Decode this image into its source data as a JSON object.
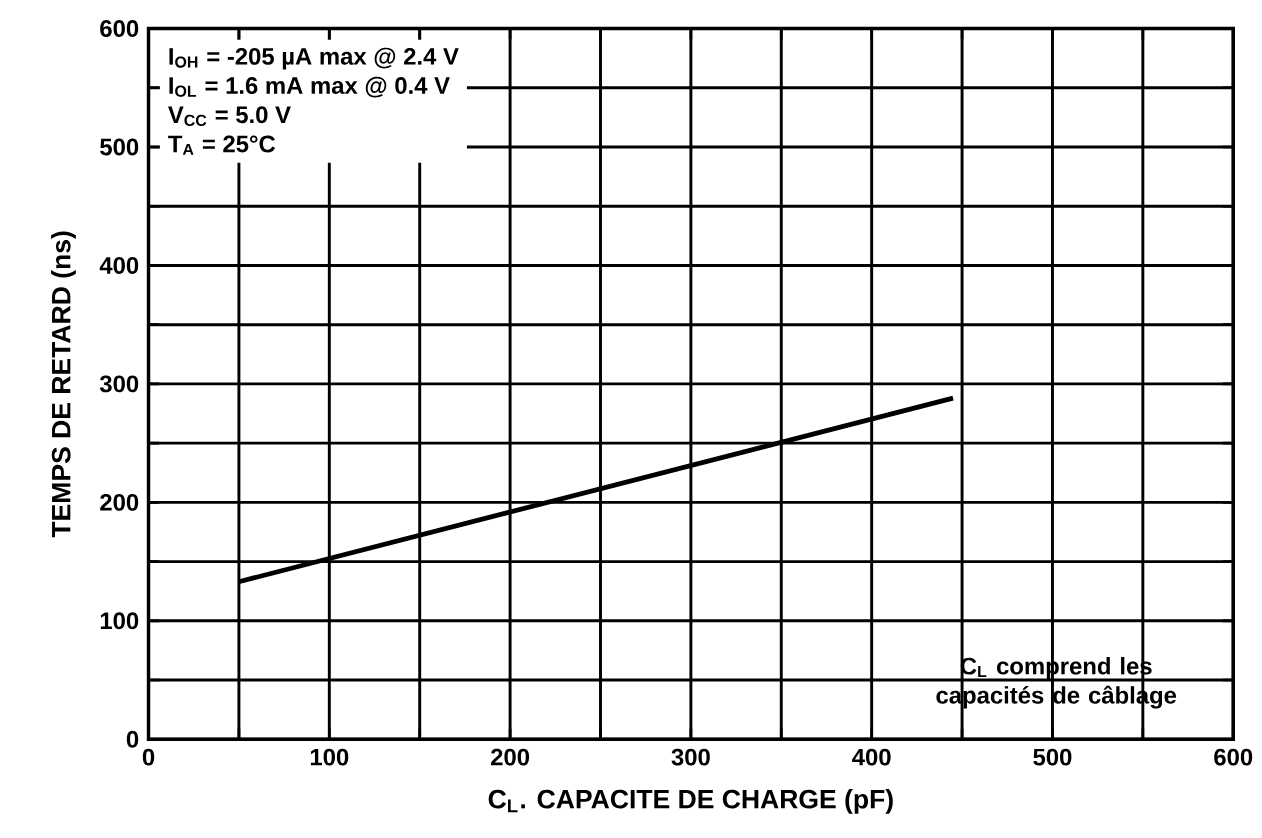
{
  "chart_data": {
    "type": "line",
    "xlabel": "C$_{L}$. CAPACITE DE CHARGE (pF)",
    "ylabel": "TEMPS DE RETARD (ns)",
    "x": [
      50,
      445
    ],
    "series": [
      {
        "color": "#000000",
        "values": [
          133,
          288
        ]
      }
    ],
    "xlim": [
      0,
      600
    ],
    "ylim": [
      0,
      600
    ],
    "xticks": [
      0,
      {
        "value": 50,
        "label": null
      },
      100,
      {
        "value": 150,
        "label": null
      },
      200,
      {
        "value": 250,
        "label": null
      },
      300,
      {
        "value": 350,
        "label": null
      },
      400,
      {
        "value": 450,
        "label": null
      },
      500,
      {
        "value": 550,
        "label": null
      },
      600
    ],
    "yticks": [
      0,
      {
        "value": 50,
        "label": null
      },
      100,
      {
        "value": 150,
        "label": null
      },
      200,
      {
        "value": 250,
        "label": null
      },
      300,
      {
        "value": 350,
        "label": null
      },
      400,
      {
        "value": 450,
        "label": null
      },
      500,
      {
        "value": 550,
        "label": null
      },
      600
    ],
    "grid": true,
    "annotations": [
      "I$_{OH}$ = -205 µA max @ 2.4 V",
      "I$_{OL}$ = 1.6 mA max @ 0.4 V",
      "V$_{CC}$ = 5.0 V",
      "T$_{A}$ = 25°C",
      "C$_{L}$ comprend les capacités de câblage"
    ]
  }
}
